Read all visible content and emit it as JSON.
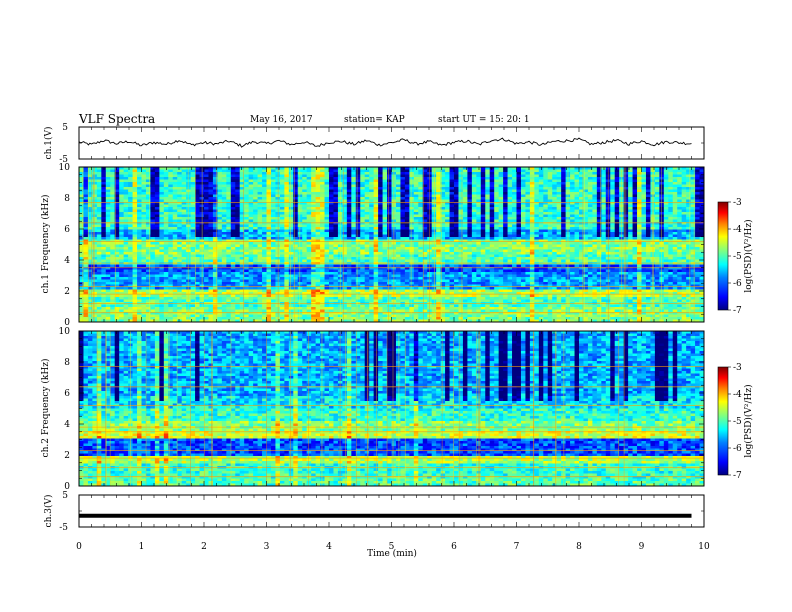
{
  "header": {
    "title": "VLF Spectra",
    "date": "May 16, 2017",
    "station": "station= KAP",
    "start": "start  UT =   15: 20: 1"
  },
  "chart_data": [
    {
      "type": "line",
      "panel": "ch1-voltage",
      "ylabel": "ch.1(V)",
      "ylim": [
        -5,
        5
      ],
      "yticks": [
        "-5",
        "5"
      ],
      "xlim": [
        0,
        10
      ],
      "x": [
        0,
        0.2,
        0.4,
        0.6,
        0.8,
        1.0,
        1.2,
        1.4,
        1.6,
        1.8,
        2.0,
        2.2,
        2.4,
        2.6,
        2.8,
        3.0,
        3.2,
        3.4,
        3.6,
        3.8,
        4.0,
        4.2,
        4.4,
        4.6,
        4.8,
        5.0,
        5.2,
        5.4,
        5.6,
        5.8,
        6.0,
        6.2,
        6.4,
        6.6,
        6.8,
        7.0,
        7.2,
        7.4,
        7.6,
        7.8,
        8.0,
        8.2,
        8.4,
        8.6,
        8.8,
        9.0,
        9.2,
        9.4,
        9.6,
        9.8
      ],
      "values": [
        0.3,
        -0.5,
        0.8,
        -0.2,
        0.5,
        -0.8,
        0.2,
        -0.4,
        0.9,
        -0.6,
        0.1,
        -0.3,
        0.6,
        -0.9,
        0.4,
        -0.2,
        0.7,
        -0.5,
        0.3,
        -1.0,
        0.2,
        0.5,
        -0.4,
        0.8,
        -0.6,
        0.1,
        1.0,
        -0.3,
        0.4,
        -0.7,
        0.2,
        0.6,
        -0.5,
        0.9,
        1.2,
        -0.2,
        0.3,
        -0.6,
        0.5,
        0.7,
        1.1,
        -0.4,
        0.2,
        0.8,
        -0.3,
        0.6,
        -0.5,
        0.4,
        0.1,
        -0.2
      ]
    },
    {
      "type": "heatmap",
      "panel": "ch1-spectrogram",
      "ylabel": "ch.1 Frequency (kHz)",
      "ylim": [
        0,
        10
      ],
      "yticks": [
        "0",
        "2",
        "4",
        "6",
        "8",
        "10"
      ],
      "xlim": [
        0,
        10
      ],
      "colorbar": {
        "label": "log(PSD)(V²/Hz)",
        "range": [
          -7,
          -3
        ],
        "ticks": [
          "-3",
          "-4",
          "-5",
          "-6",
          "-7"
        ]
      }
    },
    {
      "type": "heatmap",
      "panel": "ch2-spectrogram",
      "ylabel": "ch.2 Frequency (kHz)",
      "ylim": [
        0,
        10
      ],
      "yticks": [
        "0",
        "2",
        "4",
        "6",
        "8",
        "10"
      ],
      "xlim": [
        0,
        10
      ],
      "colorbar": {
        "label": "log(PSD)(V²/Hz)",
        "range": [
          -7,
          -3
        ],
        "ticks": [
          "-3",
          "-4",
          "-5",
          "-6",
          "-7"
        ]
      }
    },
    {
      "type": "line",
      "panel": "ch3-voltage",
      "ylabel": "ch.3(V)",
      "ylim": [
        -5,
        5
      ],
      "yticks": [
        "-5",
        "5"
      ],
      "xlim": [
        0,
        10
      ],
      "xlabel": "Time  (min)",
      "xticks": [
        "0",
        "1",
        "2",
        "3",
        "4",
        "5",
        "6",
        "7",
        "8",
        "9",
        "10"
      ],
      "x": [
        0,
        9.8
      ],
      "values": [
        -1.5,
        -1.5
      ]
    }
  ],
  "colors": {
    "jet": [
      "#00007f",
      "#0000ff",
      "#0080ff",
      "#00ffff",
      "#80ff80",
      "#ffff00",
      "#ff8000",
      "#ff0000",
      "#7f0000"
    ]
  }
}
